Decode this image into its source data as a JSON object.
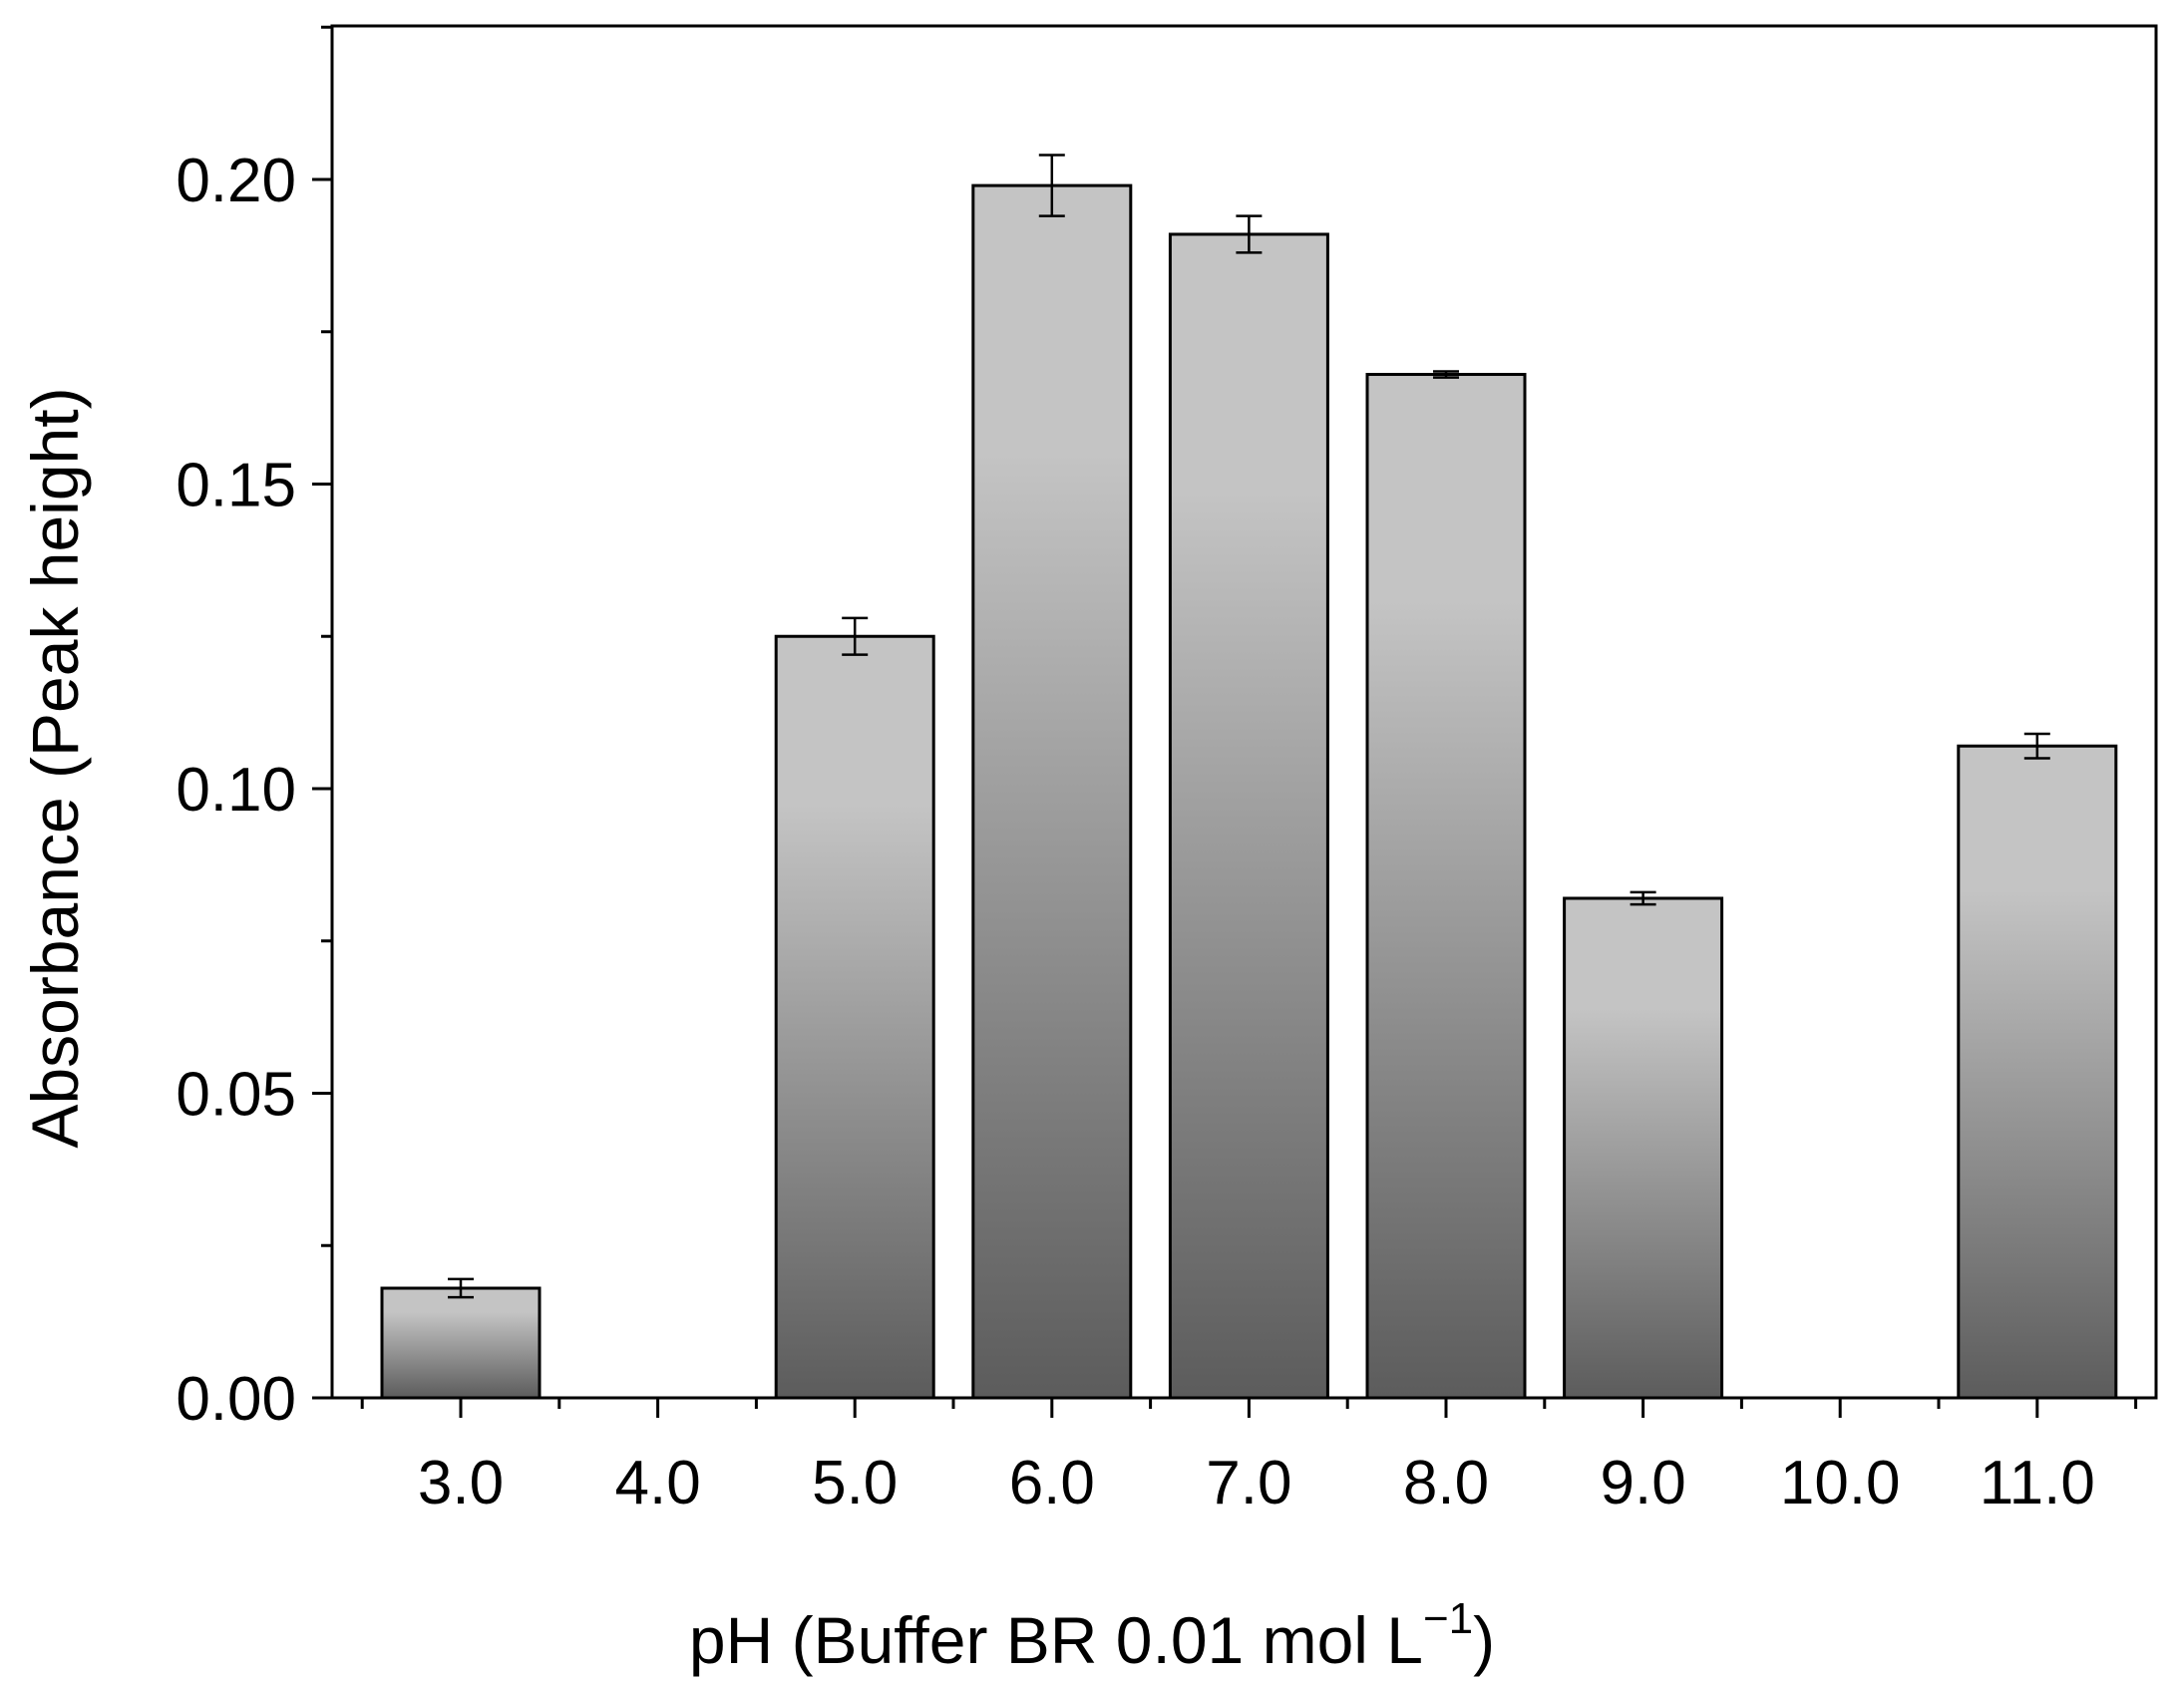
{
  "chart_data": {
    "type": "bar",
    "categories": [
      "3.0",
      "4.0",
      "5.0",
      "6.0",
      "7.0",
      "8.0",
      "9.0",
      "10.0",
      "11.0"
    ],
    "series": [
      {
        "values": [
          0.018,
          null,
          0.125,
          0.199,
          0.191,
          0.168,
          0.082,
          null,
          0.107
        ],
        "errors": [
          0.0015,
          null,
          0.003,
          0.005,
          0.003,
          0.0005,
          0.001,
          null,
          0.002
        ]
      }
    ],
    "xlabel_main": "pH (Buffer BR 0.01 mol L",
    "xlabel_sup": "−1",
    "xlabel_close": ")",
    "ylabel": "Absorbance (Peak height)",
    "ylim": [
      0,
      0.2
    ],
    "yticks": [
      "0.00",
      "0.05",
      "0.10",
      "0.15",
      "0.20"
    ],
    "ytick_values": [
      0,
      0.05,
      0.1,
      0.15,
      0.2
    ],
    "grid": false,
    "colors": {
      "bar_edge": "#000000",
      "bar_light": "#c4c4c4",
      "bar_dark": "#5c5c5c"
    }
  }
}
